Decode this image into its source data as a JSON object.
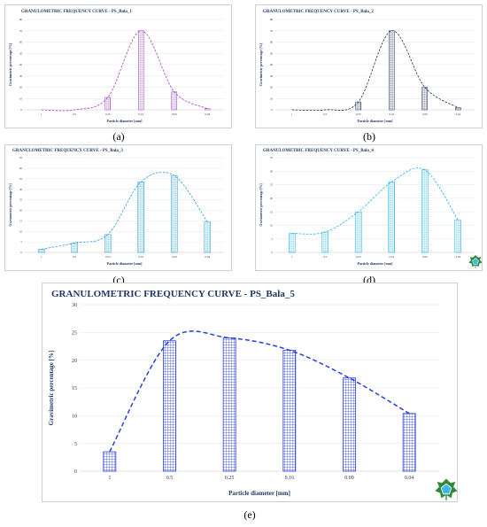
{
  "colors": {
    "purple": "#a040c8",
    "navy": "#1a2a5a",
    "cyan": "#22a0d8",
    "cyan2": "#1fb4e6",
    "blue": "#2a3ee0",
    "axis_text": "#333333"
  },
  "x_axis_label": "Particle diameter [mm]",
  "y_axis_label": "Gravimetric percentage [%]",
  "chart_data": [
    {
      "id": "a",
      "type": "bar",
      "caption": "(a)",
      "title": "GRANULOMETRIC FREQUENCY CURVE - PS_Bala_1",
      "categories": [
        "1",
        "0.5",
        "0.25",
        "0.16",
        "0.09",
        "0.04"
      ],
      "values": [
        0,
        0,
        11,
        70,
        16,
        1
      ],
      "ylim": [
        0,
        80
      ],
      "yticks": [
        0,
        10,
        20,
        30,
        40,
        50,
        60,
        70,
        80
      ],
      "xlabel": "Particle diameter [mm]",
      "ylabel": "Gravimetric percentage [%]",
      "color": "purple",
      "curve": true,
      "logo": false
    },
    {
      "id": "b",
      "type": "bar",
      "caption": "(b)",
      "title": "GRANULOMETRIC FREQUENCY CURVE - PS_Bala_2",
      "categories": [
        "1",
        "0.5",
        "0.25",
        "0.16",
        "0.09",
        "0.04"
      ],
      "values": [
        0,
        0,
        7,
        70,
        20,
        2
      ],
      "ylim": [
        0,
        80
      ],
      "yticks": [
        0,
        10,
        20,
        30,
        40,
        50,
        60,
        70,
        80
      ],
      "xlabel": "Particle diameter [mm]",
      "ylabel": "Gravimetric percentage [%]",
      "color": "navy",
      "curve": true,
      "logo": false
    },
    {
      "id": "c",
      "type": "bar",
      "caption": "(c)",
      "title": "GRANULOMETRIC FREQUENCY CURVE - PS_Bala_3",
      "categories": [
        "1",
        "0.5",
        "0.25",
        "0.16",
        "0.09",
        "0.04"
      ],
      "values": [
        1.5,
        4.5,
        8.5,
        33.5,
        36.5,
        14.5
      ],
      "ylim": [
        0,
        45
      ],
      "yticks": [
        0,
        5,
        10,
        15,
        20,
        25,
        30,
        35,
        40,
        45
      ],
      "xlabel": "Particle diameter [mm]",
      "ylabel": "Gravimetric percentage [%]",
      "color": "cyan",
      "curve": true,
      "logo": false
    },
    {
      "id": "d",
      "type": "bar",
      "caption": "(d)",
      "title": "GRANULOMETRIC FREQUENCY CURVE - PS_Bala_4",
      "categories": [
        "1",
        "0.5",
        "0.25",
        "0.16",
        "0.09",
        "0.04"
      ],
      "values": [
        7,
        7.5,
        15,
        26,
        30.5,
        12
      ],
      "ylim": [
        0,
        35
      ],
      "yticks": [
        0,
        5,
        10,
        15,
        20,
        25,
        30,
        35
      ],
      "xlabel": "Particle diameter [mm]",
      "ylabel": "Gravimetric percentage [%]",
      "color": "cyan2",
      "curve": true,
      "logo": true
    },
    {
      "id": "e",
      "type": "bar",
      "caption": "(e)",
      "title": "GRANULOMETRIC FREQUENCY CURVE - PS_Bala_5",
      "categories": [
        "1",
        "0.5",
        "0.25",
        "0.16",
        "0.09",
        "0.04"
      ],
      "values": [
        3.5,
        23.5,
        24,
        21.8,
        16.8,
        10.4
      ],
      "ylim": [
        0,
        30
      ],
      "yticks": [
        0,
        5,
        10,
        15,
        20,
        25,
        30
      ],
      "xlabel": "Particle diameter [mm]",
      "ylabel": "Gravimetric percentage [%]",
      "color": "blue",
      "curve": true,
      "logo": true
    }
  ]
}
